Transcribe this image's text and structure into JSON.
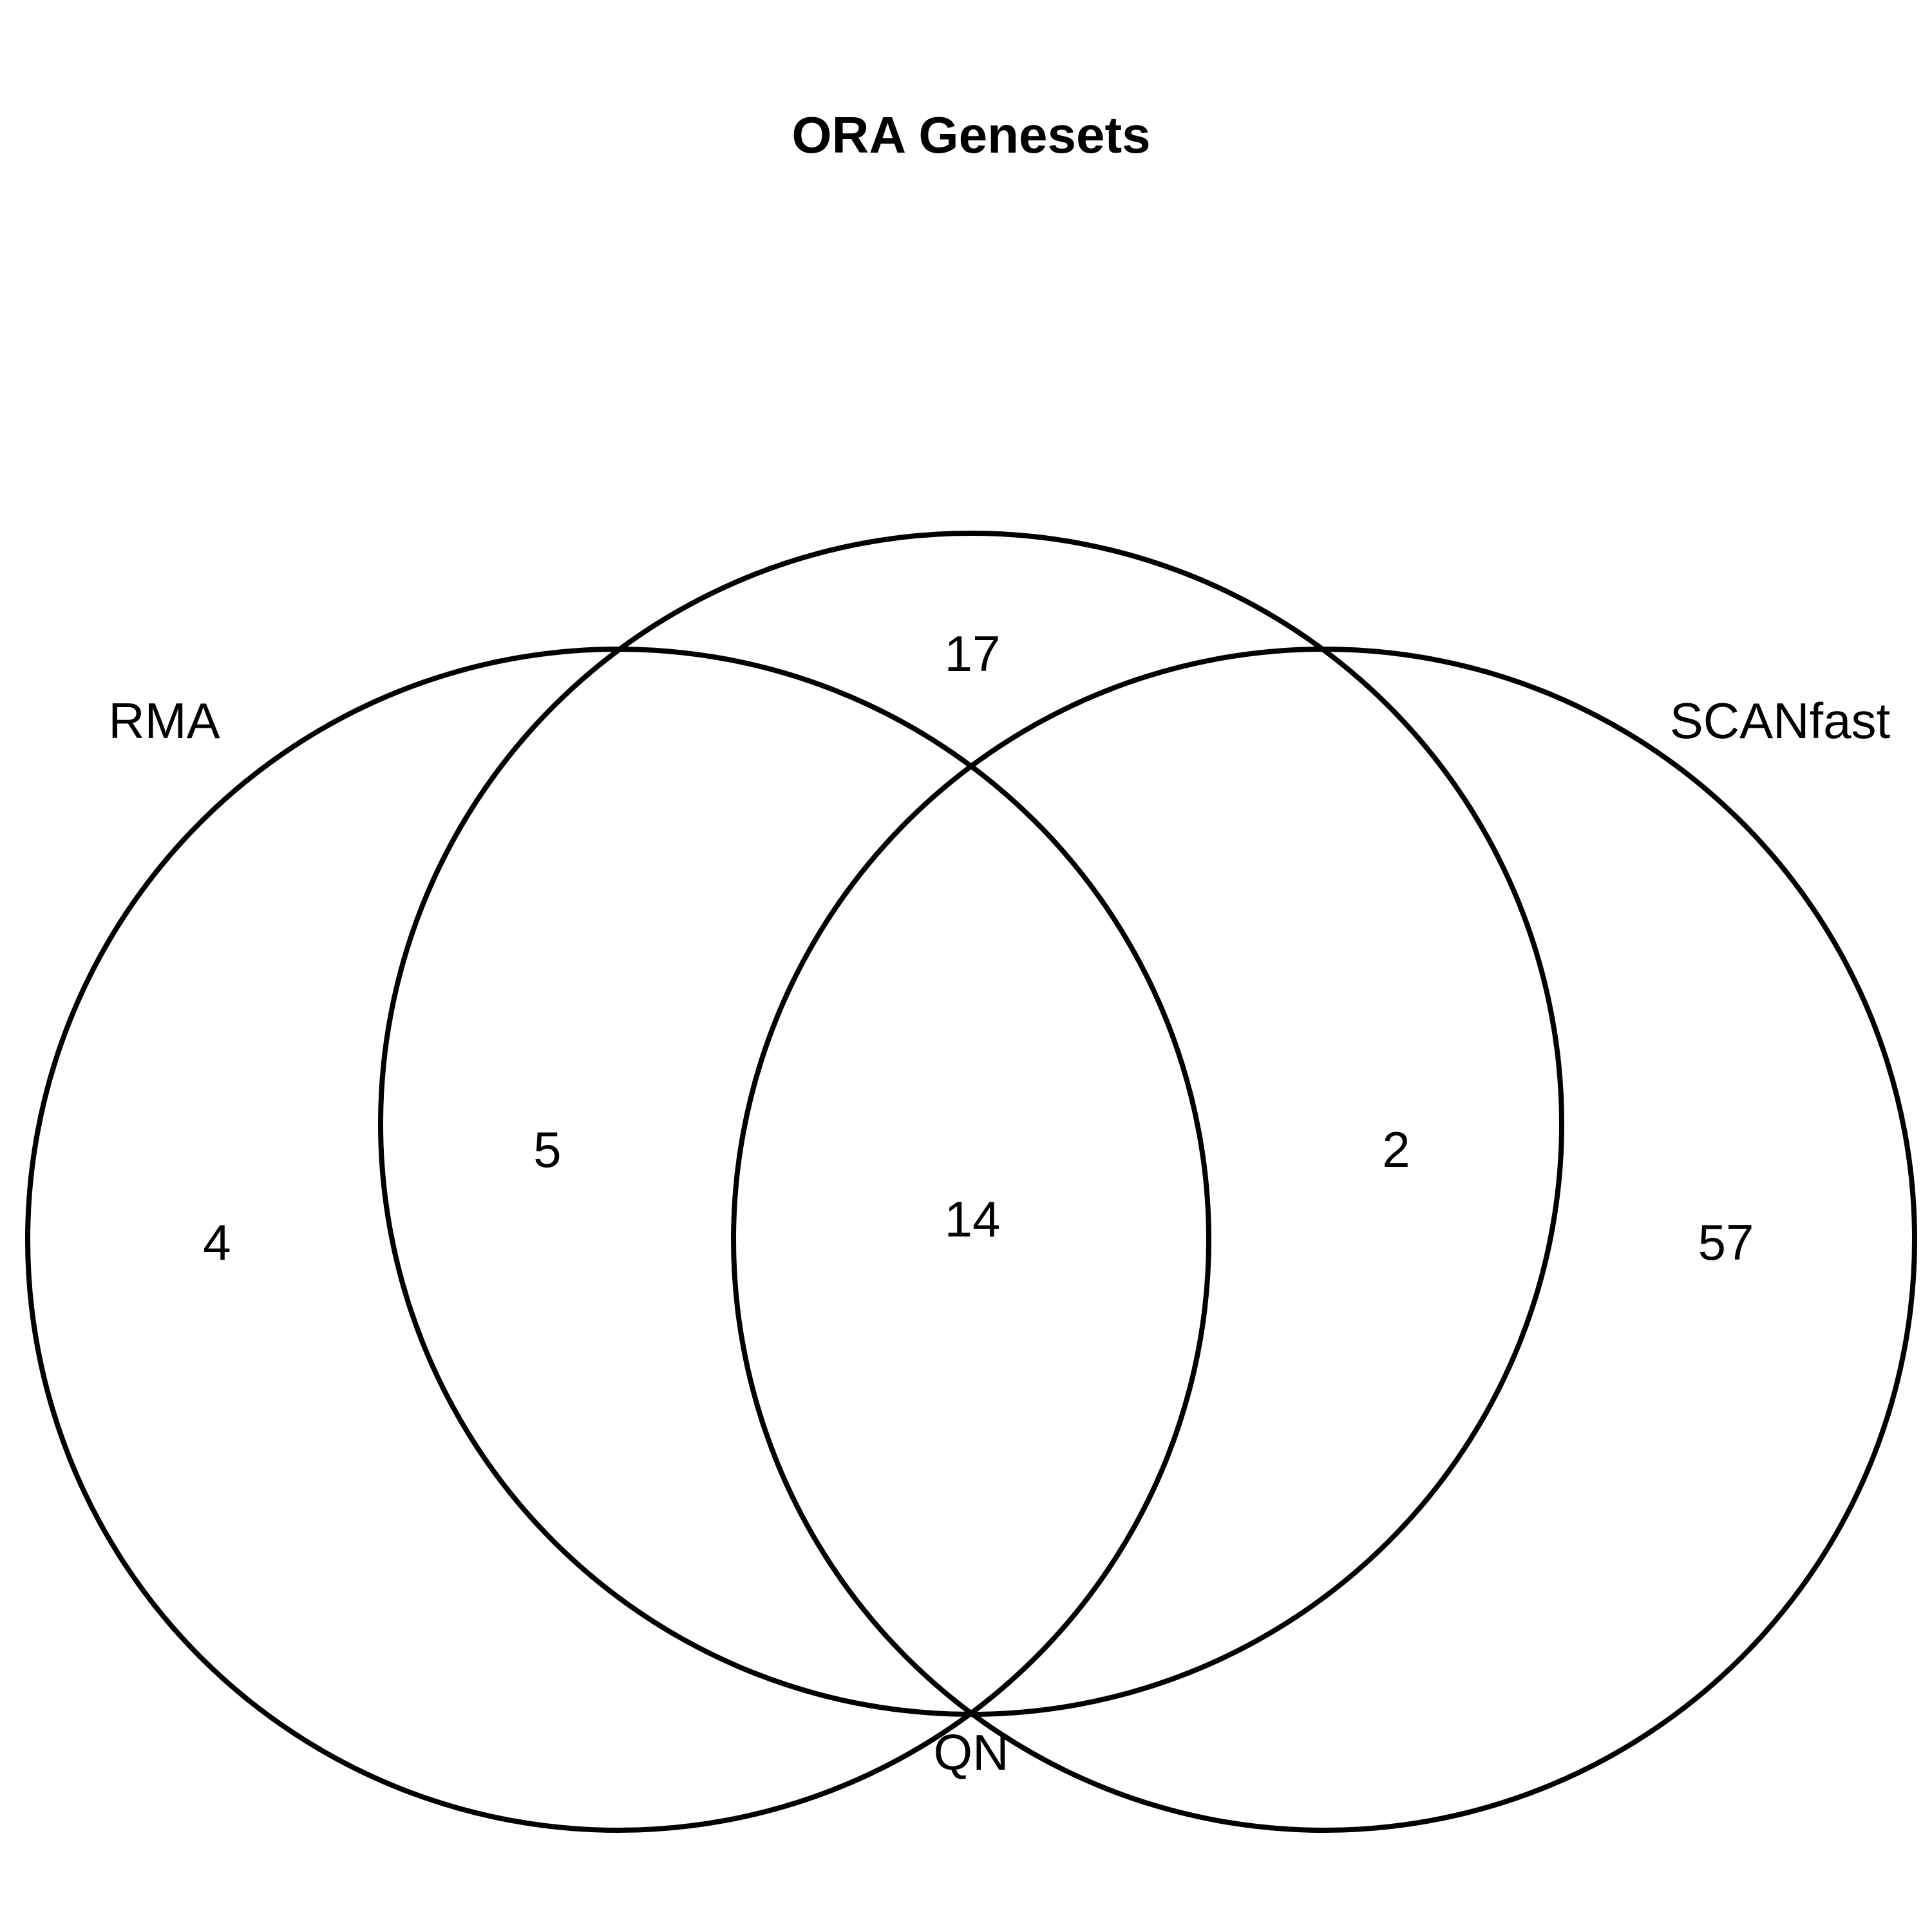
{
  "diagram": {
    "title": "ORA Genesets",
    "sets": [
      {
        "name": "RMA"
      },
      {
        "name": "QN"
      },
      {
        "name": "SCANfast"
      }
    ],
    "regions": {
      "rma_only": "4",
      "rma_qn": "5",
      "qn_only": "17",
      "all_three": "14",
      "qn_scanfast": "2",
      "scanfast_only": "57"
    },
    "stroke_color": "#000000",
    "background_color": "#ffffff"
  }
}
